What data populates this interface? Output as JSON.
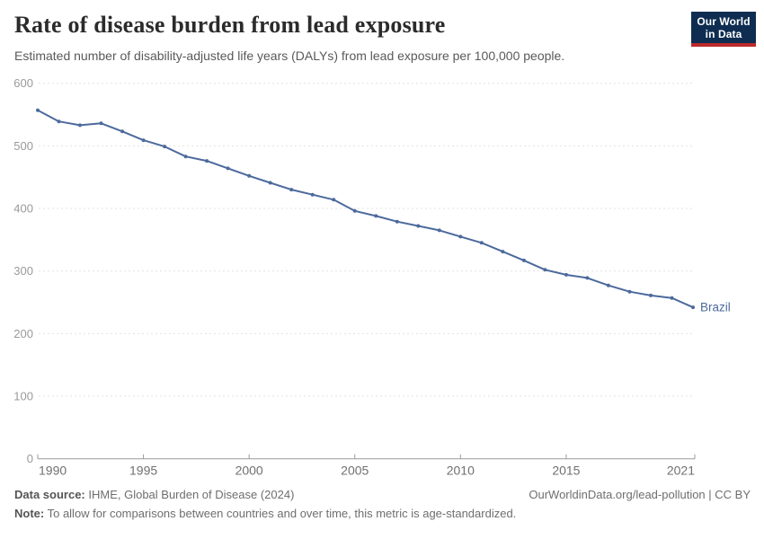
{
  "header": {
    "title": "Rate of disease burden from lead exposure",
    "subtitle": "Estimated number of disability-adjusted life years (DALYs) from lead exposure per 100,000 people.",
    "logo": {
      "line1": "Our World",
      "line2": "in Data",
      "bg_color": "#0e2d51",
      "bar_color": "#bc2a2a"
    }
  },
  "chart_data": {
    "type": "line",
    "title": "Rate of disease burden from lead exposure",
    "xlabel": "",
    "ylabel": "",
    "xlim": [
      1990,
      2021
    ],
    "ylim": [
      0,
      600
    ],
    "x_ticks": [
      1990,
      1995,
      2000,
      2005,
      2010,
      2015,
      2021
    ],
    "y_ticks": [
      0,
      100,
      200,
      300,
      400,
      500,
      600
    ],
    "grid": "horizontal-dashed",
    "legend_position": "end-of-line-label",
    "series": [
      {
        "name": "Brazil",
        "color": "#4C6A9C",
        "x": [
          1990,
          1991,
          1992,
          1993,
          1994,
          1995,
          1996,
          1997,
          1998,
          1999,
          2000,
          2001,
          2002,
          2003,
          2004,
          2005,
          2006,
          2007,
          2008,
          2009,
          2010,
          2011,
          2012,
          2013,
          2014,
          2015,
          2016,
          2017,
          2018,
          2019,
          2020,
          2021
        ],
        "values": [
          557,
          539,
          533,
          536,
          523,
          509,
          499,
          483,
          476,
          464,
          452,
          441,
          430,
          422,
          414,
          396,
          388,
          379,
          372,
          365,
          355,
          345,
          331,
          317,
          302,
          294,
          289,
          277,
          267,
          261,
          257,
          242
        ]
      }
    ],
    "style": {
      "grid_color": "#e3e3e3",
      "axis_color": "#9b9b9b",
      "y_label_color": "#9a9a9a",
      "x_label_color": "#707070"
    }
  },
  "footer": {
    "source_label": "Data source:",
    "source_text": " IHME, Global Burden of Disease (2024)",
    "note_label": "Note:",
    "note_text": " To allow for comparisons between countries and over time, this metric is age-standardized.",
    "credit": "OurWorldinData.org/lead-pollution | CC BY"
  }
}
